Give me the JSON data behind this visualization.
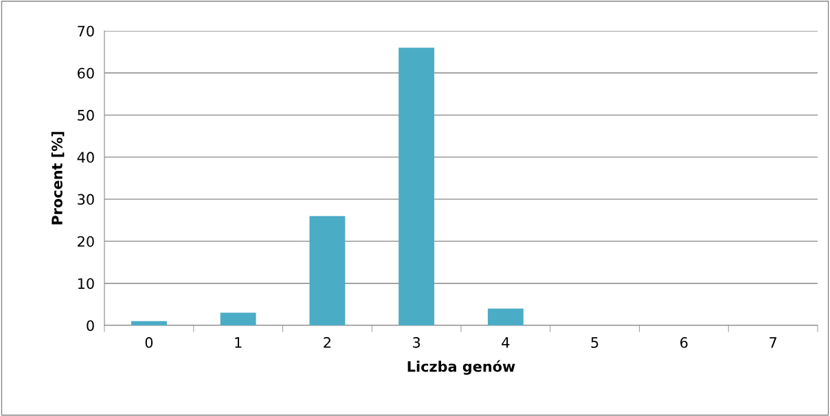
{
  "chart_data": {
    "type": "bar",
    "categories": [
      "0",
      "1",
      "2",
      "3",
      "4",
      "5",
      "6",
      "7"
    ],
    "values": [
      1,
      3,
      26,
      66,
      4,
      0,
      0,
      0
    ],
    "color": "#4bacc6",
    "xlabel": "Liczba genów",
    "ylabel": "Procent [%]",
    "ylim": [
      0,
      70
    ],
    "yticks": [
      0,
      10,
      20,
      30,
      40,
      50,
      60,
      70
    ],
    "grid": "y",
    "legend": false
  }
}
